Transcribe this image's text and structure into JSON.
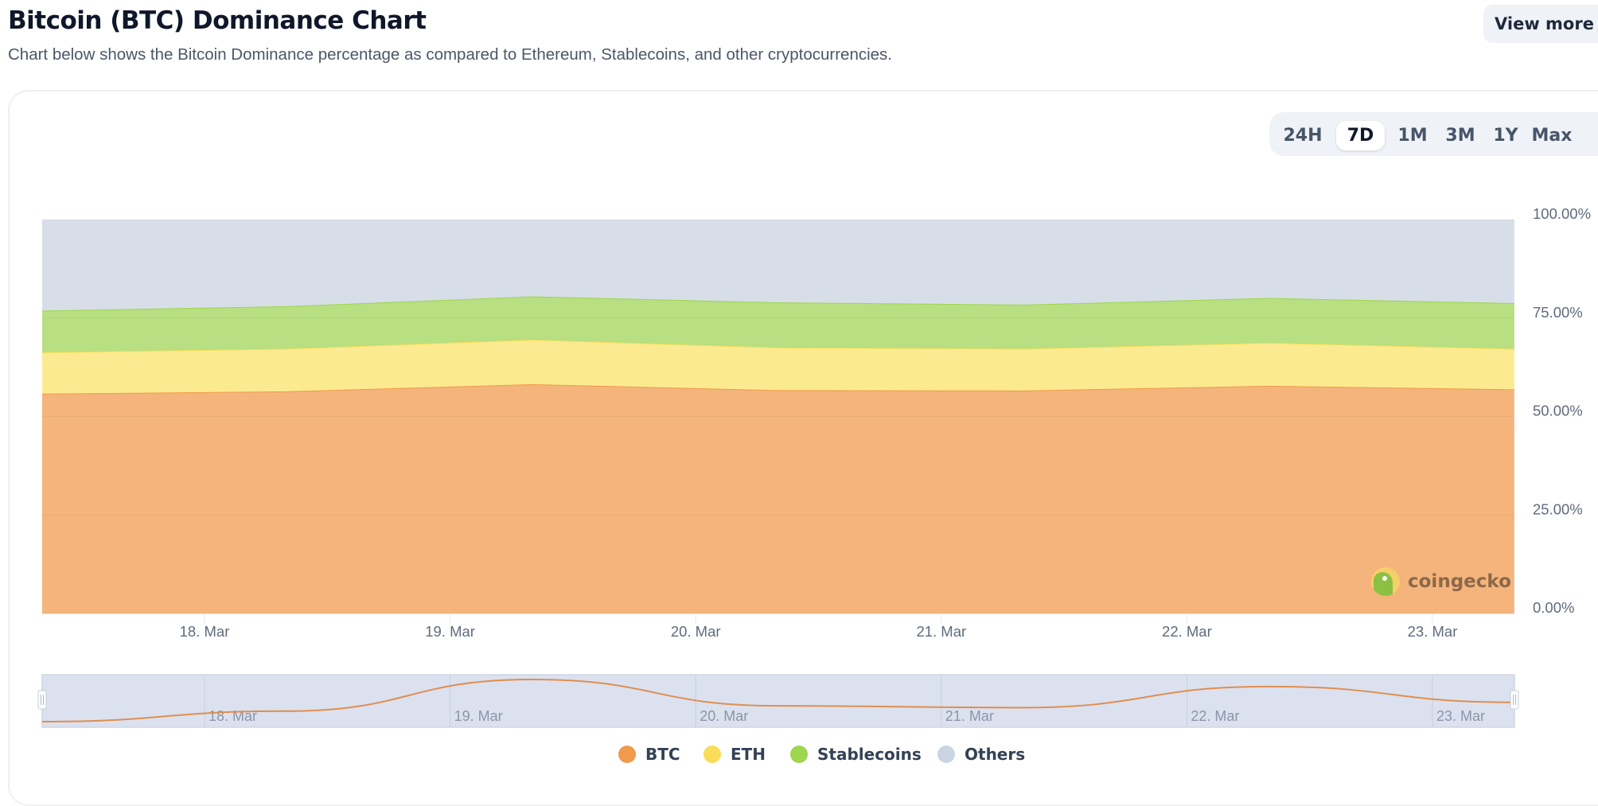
{
  "header": {
    "title": "Bitcoin (BTC) Dominance Chart",
    "subtitle": "Chart below shows the Bitcoin Dominance percentage as compared to Ethereum, Stablecoins, and other cryptocurrencies.",
    "view_more_label": "View more"
  },
  "ranges": {
    "options": [
      "24H",
      "7D",
      "1M",
      "3M",
      "1Y",
      "Max"
    ],
    "selected": "7D"
  },
  "logo": {
    "text": "coingecko"
  },
  "chart_data": {
    "type": "area",
    "stacked": true,
    "x": [
      "17 Mar 08:00",
      "18 Mar 08:00",
      "19 Mar 08:00",
      "20 Mar 08:00",
      "21 Mar 08:00",
      "22 Mar 08:00",
      "23 Mar 08:00"
    ],
    "series": [
      {
        "name": "BTC",
        "color": "#f09a4d",
        "fill": "#f4b47c",
        "values": [
          55.8,
          56.4,
          58.2,
          56.7,
          56.6,
          57.8,
          56.9
        ]
      },
      {
        "name": "ETH",
        "color": "#f9dd5a",
        "fill": "#fcea90",
        "values": [
          10.5,
          10.8,
          11.3,
          10.8,
          10.6,
          10.9,
          10.3
        ]
      },
      {
        "name": "Stablecoins",
        "color": "#9ed64d",
        "fill": "#b8df81",
        "values": [
          10.6,
          10.8,
          11.0,
          11.5,
          11.2,
          11.4,
          11.6
        ]
      },
      {
        "name": "Others",
        "color": "#cbd5e1",
        "fill": "#d8dee8",
        "values": [
          23.1,
          22.0,
          19.5,
          21.0,
          21.6,
          19.9,
          21.2
        ]
      }
    ],
    "x_ticks": [
      "18. Mar",
      "19. Mar",
      "20. Mar",
      "21. Mar",
      "22. Mar",
      "23. Mar"
    ],
    "y_ticks": [
      "0.00%",
      "25.00%",
      "50.00%",
      "75.00%",
      "100.00%"
    ],
    "ylim": [
      0,
      100
    ],
    "y_axis_side": "right",
    "legend_position": "bottom",
    "navigator": {
      "series": "BTC",
      "x_ticks": [
        "18. Mar",
        "19. Mar",
        "20. Mar",
        "21. Mar",
        "22. Mar",
        "23. Mar"
      ]
    }
  }
}
